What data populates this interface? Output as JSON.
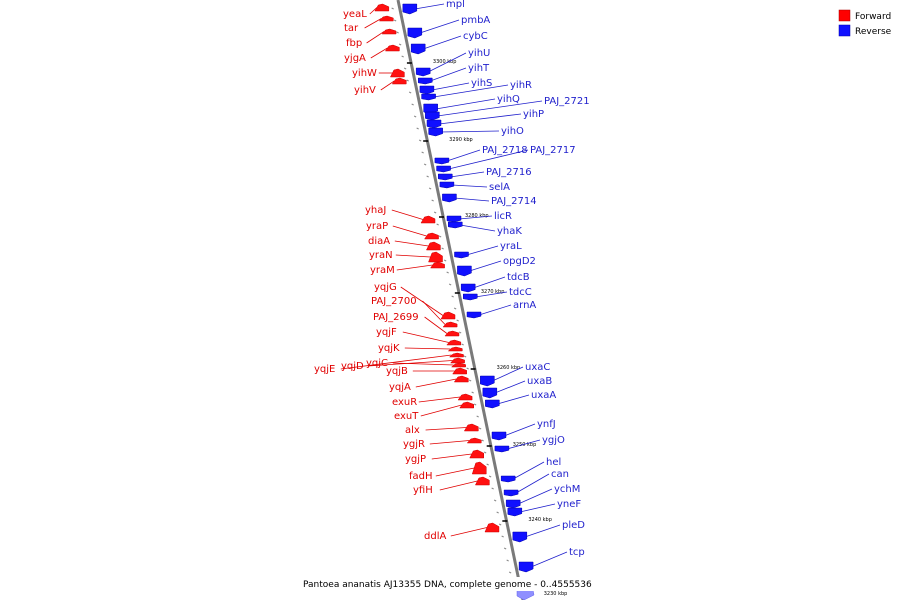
{
  "caption": "Pantoea ananatis AJ13355 DNA, complete genome - 0..4555536",
  "legend": [
    {
      "label": "Forward",
      "color": "#ff0000"
    },
    {
      "label": "Reverse",
      "color": "#1010ff"
    }
  ],
  "colors": {
    "forward": "#e00000",
    "reverse": "#1f1fcc",
    "backbone": "#7a7a7a"
  },
  "kbp_ticks": [
    "3300 kbp",
    "3290 kbp",
    "3280 kbp",
    "3270 kbp",
    "3260 kbp",
    "3250 kbp",
    "3240 kbp",
    "3230 kbp"
  ],
  "forward_genes": [
    "yeaL",
    "tar",
    "fbp",
    "yjgA",
    "yihW",
    "yihV",
    "yhaJ",
    "yraP",
    "diaA",
    "yraN",
    "yraM",
    "yqjG",
    "PAJ_2700",
    "PAJ_2699",
    "yqjF",
    "yqjK",
    "yqjE",
    "yqjD",
    "yqjC",
    "yqjB",
    "yqjA",
    "exuR",
    "exuT",
    "alx",
    "ygjR",
    "ygjP",
    "fadH",
    "yfiH",
    "ddlA"
  ],
  "reverse_genes": [
    "mpl",
    "pmbA",
    "cybC",
    "yihU",
    "yihT",
    "yihS",
    "yihR",
    "yihQ",
    "PAJ_2721",
    "yihP",
    "yihO",
    "PAJ_2718",
    "PAJ_2717",
    "PAJ_2716",
    "selA",
    "PAJ_2714",
    "licR",
    "yhaK",
    "yraL",
    "opgD2",
    "tdcB",
    "tdcC",
    "arnA",
    "uxaC",
    "uxaB",
    "uxaA",
    "ynfJ",
    "ygjO",
    "hel",
    "can",
    "ychM",
    "yneF",
    "pleD",
    "tcp"
  ]
}
